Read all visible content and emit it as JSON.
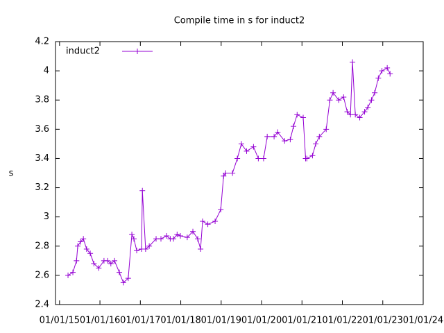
{
  "chart_data": {
    "type": "line",
    "title": "Compile time in s for induct2",
    "y_label": "s",
    "x": [
      2015.21,
      2015.33,
      2015.42,
      2015.45,
      2015.52,
      2015.59,
      2015.67,
      2015.76,
      2015.85,
      2015.97,
      2016.1,
      2016.19,
      2016.27,
      2016.36,
      2016.48,
      2016.58,
      2016.7,
      2016.79,
      2016.84,
      2016.91,
      2017.03,
      2017.05,
      2017.13,
      2017.22,
      2017.39,
      2017.51,
      2017.65,
      2017.74,
      2017.82,
      2017.91,
      2017.99,
      2018.16,
      2018.3,
      2018.42,
      2018.49,
      2018.54,
      2018.67,
      2018.85,
      2018.99,
      2019.06,
      2019.11,
      2019.28,
      2019.4,
      2019.5,
      2019.63,
      2019.8,
      2019.92,
      2020.05,
      2020.14,
      2020.31,
      2020.4,
      2020.57,
      2020.71,
      2020.79,
      2020.88,
      2021.03,
      2021.09,
      2021.12,
      2021.26,
      2021.34,
      2021.43,
      2021.6,
      2021.69,
      2021.77,
      2021.91,
      2022.03,
      2022.12,
      2022.2,
      2022.25,
      2022.32,
      2022.43,
      2022.55,
      2022.63,
      2022.72,
      2022.8,
      2022.89,
      2022.98,
      2023.11,
      2023.18
    ],
    "series": [
      {
        "name": "induct2",
        "color": "#9400d3",
        "values": [
          2.6,
          2.62,
          2.7,
          2.8,
          2.83,
          2.85,
          2.78,
          2.75,
          2.68,
          2.65,
          2.7,
          2.7,
          2.68,
          2.7,
          2.62,
          2.55,
          2.58,
          2.88,
          2.85,
          2.77,
          2.78,
          3.18,
          2.78,
          2.8,
          2.85,
          2.85,
          2.87,
          2.85,
          2.85,
          2.88,
          2.87,
          2.86,
          2.9,
          2.85,
          2.78,
          2.97,
          2.95,
          2.97,
          3.05,
          3.28,
          3.3,
          3.3,
          3.4,
          3.5,
          3.45,
          3.48,
          3.4,
          3.4,
          3.55,
          3.55,
          3.58,
          3.52,
          3.53,
          3.62,
          3.7,
          3.68,
          3.4,
          3.4,
          3.42,
          3.5,
          3.55,
          3.6,
          3.8,
          3.85,
          3.8,
          3.82,
          3.72,
          3.7,
          4.06,
          3.7,
          3.68,
          3.72,
          3.75,
          3.8,
          3.85,
          3.95,
          4.0,
          4.02,
          3.98
        ]
      }
    ],
    "xlim": [
      2014.9,
      2024.0
    ],
    "xticks": [
      {
        "value": 2015,
        "label": "01/01/15"
      },
      {
        "value": 2016,
        "label": "01/01/16"
      },
      {
        "value": 2017,
        "label": "01/01/17"
      },
      {
        "value": 2018,
        "label": "01/01/18"
      },
      {
        "value": 2019,
        "label": "01/01/19"
      },
      {
        "value": 2020,
        "label": "01/01/20"
      },
      {
        "value": 2021,
        "label": "01/01/21"
      },
      {
        "value": 2022,
        "label": "01/01/22"
      },
      {
        "value": 2023,
        "label": "01/01/23"
      },
      {
        "value": 2024,
        "label": "01/01/24"
      }
    ],
    "ylim": [
      2.4,
      4.2
    ],
    "yticks": [
      2.4,
      2.6,
      2.8,
      3,
      3.2,
      3.4,
      3.6,
      3.8,
      4,
      4.2
    ],
    "grid": false,
    "legend": "top-left"
  }
}
